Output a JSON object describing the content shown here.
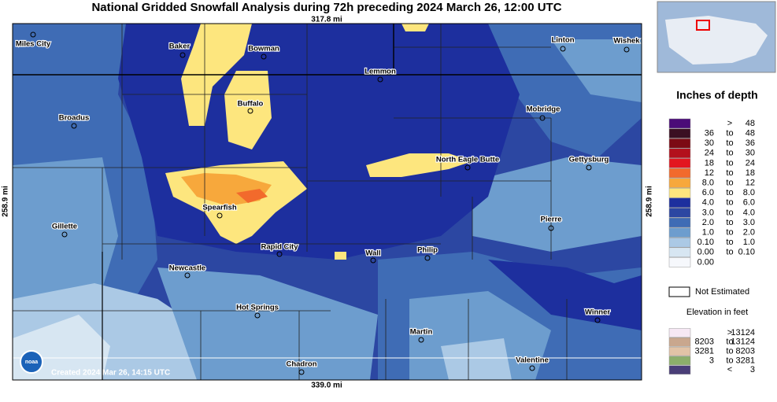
{
  "header": {
    "title": "National Gridded Snowfall Analysis during 72h preceding 2024 March 26, 12:00 UTC"
  },
  "map": {
    "scale_top": "317.8 mi",
    "scale_bottom": "339.0 mi",
    "scale_left": "258.9 mi",
    "scale_right": "258.9 mi",
    "created": "Created 2024 Mar 26, 14:15 UTC",
    "cities": [
      "Miles City",
      "Baker",
      "Bowman",
      "Lemmon",
      "Linton",
      "Wishek",
      "Broadus",
      "Buffalo",
      "Mobridge",
      "North Eagle Butte",
      "Gettysburg",
      "Spearfish",
      "Gillette",
      "Pierre",
      "Rapid City",
      "Wall",
      "Philip",
      "Newcastle",
      "Hot Springs",
      "Winner",
      "Martin",
      "Chadron",
      "Valentine"
    ]
  },
  "legend": {
    "title": "Inches of depth",
    "rows": [
      {
        "color": "#4b0c78",
        "sep": ">",
        "high": "48"
      },
      {
        "color": "#3a0f22",
        "low": "36",
        "sep": "to",
        "high": "48"
      },
      {
        "color": "#7c0a14",
        "low": "30",
        "sep": "to",
        "high": "36"
      },
      {
        "color": "#b3101c",
        "low": "24",
        "sep": "to",
        "high": "30"
      },
      {
        "color": "#e3161f",
        "low": "18",
        "sep": "to",
        "high": "24"
      },
      {
        "color": "#f26a2c",
        "low": "12",
        "sep": "to",
        "high": "18"
      },
      {
        "color": "#f7a83c",
        "low": "8.0",
        "sep": "to",
        "high": "12"
      },
      {
        "color": "#fde67e",
        "low": "6.0",
        "sep": "to",
        "high": "8.0"
      },
      {
        "color": "#1d2f9e",
        "low": "4.0",
        "sep": "to",
        "high": "6.0"
      },
      {
        "color": "#2c47a2",
        "low": "3.0",
        "sep": "to",
        "high": "4.0"
      },
      {
        "color": "#3f6cb5",
        "low": "2.0",
        "sep": "to",
        "high": "3.0"
      },
      {
        "color": "#6d9dce",
        "low": "1.0",
        "sep": "to",
        "high": "2.0"
      },
      {
        "color": "#abc9e5",
        "low": "0.10",
        "sep": "to",
        "high": "1.0"
      },
      {
        "color": "#d7e6f2",
        "low": "0.00",
        "sep": "to",
        "high": "0.10"
      },
      {
        "color": "#f6f8fc",
        "low": "0.00"
      }
    ],
    "not_estimated": "Not Estimated",
    "elevation_title": "Elevation in feet",
    "elevation_rows": [
      {
        "color": "#f6e8f4",
        "sep": ">",
        "high": "13124"
      },
      {
        "color": "#c9a78e",
        "low": "8203",
        "sep": "to",
        "high": "13124"
      },
      {
        "color": "#e2c3a7",
        "low": "3281",
        "sep": "to",
        "high": "8203"
      },
      {
        "color": "#8cae6b",
        "low": "3",
        "sep": "to",
        "high": "3281"
      },
      {
        "color": "#4a3e78",
        "sep": "<",
        "high": "3"
      }
    ]
  }
}
